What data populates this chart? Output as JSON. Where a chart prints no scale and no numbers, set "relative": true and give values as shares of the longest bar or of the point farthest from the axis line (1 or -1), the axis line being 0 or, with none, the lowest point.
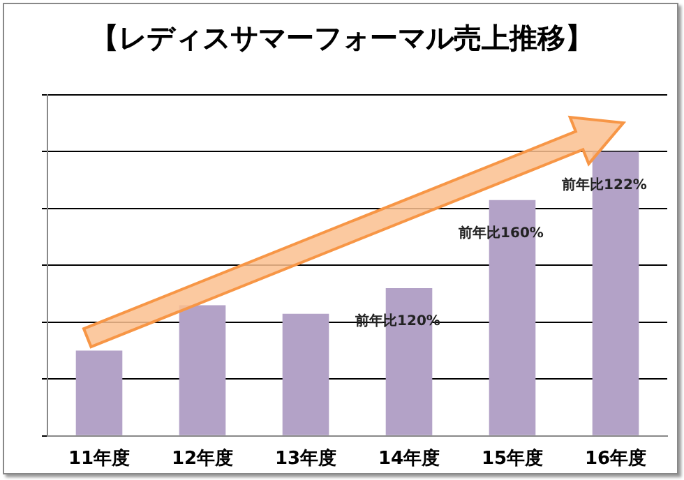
{
  "chart_data": {
    "type": "bar",
    "title": "【レディスサマーフォーマル売上推移】",
    "categories": [
      "11年度",
      "12年度",
      "13年度",
      "14年度",
      "15年度",
      "16年度"
    ],
    "values": [
      0.3,
      0.46,
      0.43,
      0.52,
      0.83,
      1
    ],
    "color": "#b3a2c7",
    "relative": true,
    "grid": "y",
    "annotations": [
      {
        "text": "前年比120%",
        "x": "14年度",
        "y": 0.52
      },
      {
        "text": "前年比160%",
        "x": "15年度",
        "y": 0.83
      },
      {
        "text": "前年比122%",
        "x": "16年度",
        "y": 1
      }
    ]
  }
}
